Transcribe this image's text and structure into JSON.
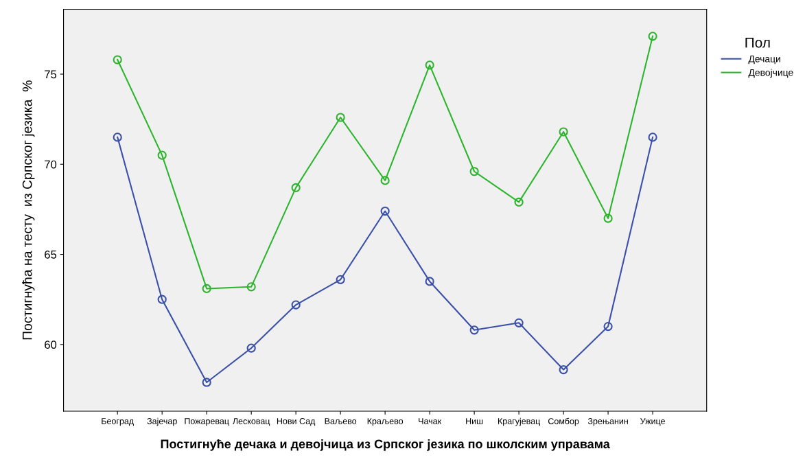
{
  "chart_data": {
    "type": "line",
    "xlabel": "Постигнуће дечака и девојчица из Српског језика по школским управама",
    "ylabel": "Постигнућа на тесту  из Српског језика  %",
    "legend_title": "Пол",
    "legend": "right",
    "marker": "circle",
    "line_style": "solid",
    "grid": false,
    "categories": [
      "Београд",
      "Зајечар",
      "Пожаревац",
      "Лесковац",
      "Нови Сад",
      "Ваљево",
      "Краљево",
      "Чачак",
      "Ниш",
      "Крагујевац",
      "Сомбор",
      "Зрењанин",
      "Ужице"
    ],
    "ylim": [
      56.3,
      78.6
    ],
    "yticks": [
      60,
      65,
      70,
      75
    ],
    "series": [
      {
        "name": "Дечаци",
        "color": "#3a4fa8",
        "values": [
          71.5,
          62.5,
          57.9,
          59.8,
          62.2,
          63.6,
          67.4,
          63.5,
          60.8,
          61.2,
          58.6,
          61.0,
          71.5
        ]
      },
      {
        "name": "Девојчице",
        "color": "#2cb52c",
        "values": [
          75.8,
          70.5,
          63.1,
          63.2,
          68.7,
          72.6,
          69.1,
          75.5,
          69.6,
          67.9,
          71.8,
          67.0,
          77.1
        ]
      }
    ]
  }
}
